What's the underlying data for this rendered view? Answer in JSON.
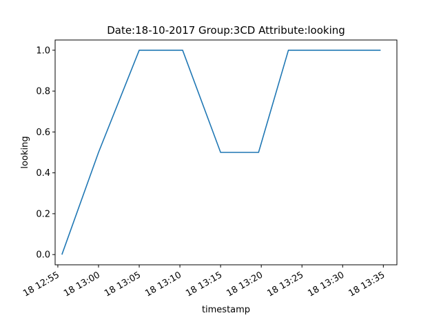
{
  "chart_data": {
    "type": "line",
    "title": "Date:18-10-2017  Group:3CD Attribute:looking",
    "xlabel": "timestamp",
    "ylabel": "looking",
    "grid": false,
    "legend": "none",
    "x_ticks": [
      "18 12:55",
      "18 13:00",
      "18 13:05",
      "18 13:10",
      "18 13:15",
      "18 13:20",
      "18 13:25",
      "18 13:30",
      "18 13:35"
    ],
    "y_ticks": [
      "0.0",
      "0.2",
      "0.4",
      "0.6",
      "0.8",
      "1.0"
    ],
    "xlim": [
      "2017-10-18 12:54:40",
      "2017-10-18 13:36:40"
    ],
    "ylim": [
      -0.05,
      1.05
    ],
    "series": [
      {
        "color": "#1f77b4",
        "x": [
          "2017-10-18 12:55:30",
          "2017-10-18 13:00:00",
          "2017-10-18 13:05:00",
          "2017-10-18 13:10:20",
          "2017-10-18 13:15:00",
          "2017-10-18 13:19:40",
          "2017-10-18 13:23:20",
          "2017-10-18 13:34:40"
        ],
        "y": [
          0.0,
          0.5,
          1.0,
          1.0,
          0.5,
          0.5,
          1.0,
          1.0
        ]
      }
    ]
  }
}
